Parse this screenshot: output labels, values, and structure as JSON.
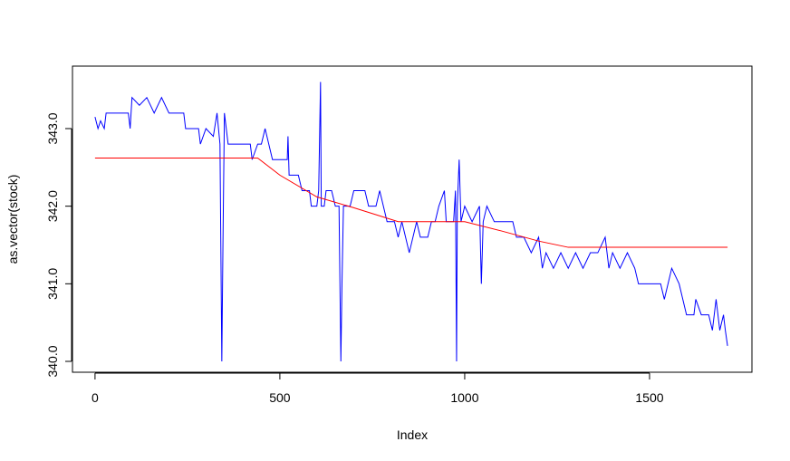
{
  "chart_data": {
    "type": "line",
    "xlabel": "Index",
    "ylabel": "as.vector(stock)",
    "xlim": [
      -61,
      1777
    ],
    "ylim": [
      339.86,
      343.805
    ],
    "xticks": [
      0,
      500,
      1000,
      1500
    ],
    "yticks": [
      {
        "value": 340,
        "label": "340.0"
      },
      {
        "value": 341,
        "label": "341.0"
      },
      {
        "value": 342,
        "label": "342.0"
      },
      {
        "value": 343,
        "label": "343.0"
      }
    ],
    "series": [
      {
        "color": "#0000ff",
        "x": [
          0,
          8,
          15,
          25,
          30,
          90,
          95,
          100,
          120,
          140,
          160,
          180,
          200,
          240,
          245,
          280,
          285,
          300,
          320,
          330,
          338,
          343,
          346,
          350,
          355,
          360,
          420,
          425,
          440,
          450,
          460,
          470,
          480,
          500,
          520,
          522,
          525,
          550,
          560,
          580,
          585,
          600,
          605,
          610,
          612,
          620,
          625,
          640,
          650,
          660,
          665,
          668,
          672,
          690,
          700,
          730,
          740,
          760,
          770,
          780,
          790,
          810,
          820,
          830,
          840,
          850,
          860,
          870,
          880,
          900,
          910,
          920,
          930,
          945,
          950,
          970,
          975,
          978,
          980,
          985,
          990,
          1000,
          1020,
          1040,
          1045,
          1050,
          1060,
          1080,
          1110,
          1130,
          1140,
          1160,
          1180,
          1200,
          1210,
          1220,
          1240,
          1260,
          1280,
          1300,
          1320,
          1340,
          1360,
          1380,
          1390,
          1400,
          1420,
          1440,
          1460,
          1470,
          1530,
          1540,
          1550,
          1560,
          1580,
          1590,
          1600,
          1620,
          1625,
          1640,
          1660,
          1670,
          1680,
          1690,
          1700,
          1705,
          1711
        ],
        "values": [
          343.15,
          343.0,
          343.1,
          343.0,
          343.2,
          343.2,
          343.0,
          343.4,
          343.3,
          343.4,
          343.2,
          343.4,
          343.2,
          343.2,
          343.0,
          343.0,
          342.8,
          343.0,
          342.9,
          343.2,
          342.8,
          340.0,
          341.5,
          343.2,
          343.0,
          342.8,
          342.8,
          342.6,
          342.8,
          342.8,
          343.0,
          342.8,
          342.6,
          342.6,
          342.6,
          342.9,
          342.4,
          342.4,
          342.2,
          342.2,
          342.0,
          342.0,
          342.2,
          343.6,
          342.0,
          342.0,
          342.2,
          342.2,
          342.0,
          342.0,
          340.0,
          341.0,
          342.0,
          342.0,
          342.2,
          342.2,
          342.0,
          342.0,
          342.2,
          342.0,
          341.8,
          341.8,
          341.6,
          341.8,
          341.6,
          341.4,
          341.6,
          341.8,
          341.6,
          341.6,
          341.8,
          341.8,
          342.0,
          342.2,
          341.8,
          341.8,
          342.2,
          340.0,
          342.0,
          342.6,
          341.8,
          342.0,
          341.8,
          342.0,
          341.0,
          341.8,
          342.0,
          341.8,
          341.8,
          341.8,
          341.6,
          341.6,
          341.4,
          341.6,
          341.2,
          341.4,
          341.2,
          341.4,
          341.2,
          341.4,
          341.2,
          341.4,
          341.4,
          341.6,
          341.2,
          341.4,
          341.2,
          341.4,
          341.2,
          341.0,
          341.0,
          340.8,
          341.0,
          341.2,
          341.0,
          340.8,
          340.6,
          340.6,
          340.8,
          340.6,
          340.6,
          340.4,
          340.8,
          340.4,
          340.6,
          340.4,
          340.2
        ]
      },
      {
        "color": "#ff0000",
        "x": [
          0,
          440,
          500,
          600,
          700,
          820,
          1000,
          1100,
          1200,
          1280,
          1711
        ],
        "values": [
          342.62,
          342.62,
          342.4,
          342.12,
          341.98,
          341.8,
          341.8,
          341.68,
          341.55,
          341.47,
          341.47
        ]
      }
    ]
  }
}
